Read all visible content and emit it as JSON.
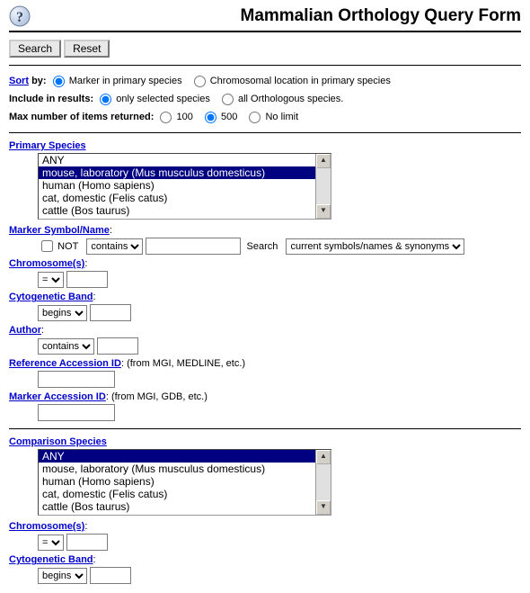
{
  "title": "Mammalian Orthology Query Form",
  "buttons": {
    "search": "Search",
    "reset": "Reset"
  },
  "sort": {
    "label": "Sort",
    "by": "by:",
    "opt1": "Marker in primary species",
    "opt2": "Chromosomal location in primary species"
  },
  "include": {
    "label": "Include in results:",
    "opt1": "only selected species",
    "opt2": "all Orthologous species."
  },
  "max": {
    "label": "Max number of items returned:",
    "opt1": "100",
    "opt2": "500",
    "opt3": "No limit"
  },
  "primary": {
    "title": "Primary Species",
    "items": [
      "ANY",
      "mouse, laboratory (Mus musculus domesticus)",
      "human (Homo sapiens)",
      "cat, domestic (Felis catus)",
      "cattle (Bos taurus)"
    ],
    "selected_index": 1
  },
  "marker_symbol": {
    "label": "Marker Symbol/Name",
    "not": "NOT",
    "op": "contains",
    "search_label": "Search",
    "scope": "current symbols/names & synonyms"
  },
  "chrom": {
    "label": "Chromosome(s)",
    "op": "="
  },
  "cyto": {
    "label": "Cytogenetic Band",
    "op": "begins"
  },
  "author": {
    "label": "Author",
    "op": "contains"
  },
  "ref_acc": {
    "label": "Reference Accession ID",
    "hint": "(from MGI, MEDLINE, etc.)"
  },
  "marker_acc": {
    "label": "Marker Accession ID",
    "hint": "(from MGI, GDB, etc.)"
  },
  "comparison": {
    "title": "Comparison Species",
    "items": [
      "ANY",
      "mouse, laboratory (Mus musculus domesticus)",
      "human (Homo sapiens)",
      "cat, domestic (Felis catus)",
      "cattle (Bos taurus)"
    ],
    "selected_index": 0
  },
  "chrom2": {
    "label": "Chromosome(s)",
    "op": "="
  },
  "cyto2": {
    "label": "Cytogenetic Band",
    "op": "begins"
  }
}
